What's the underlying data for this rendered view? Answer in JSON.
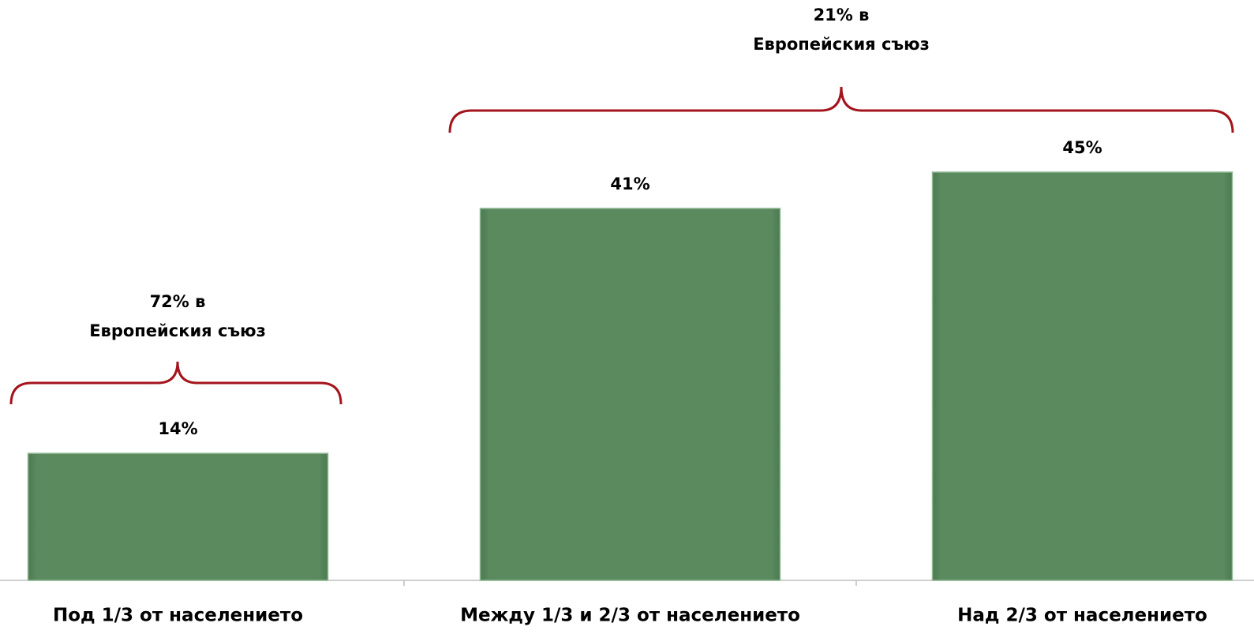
{
  "chart_data": {
    "type": "bar",
    "categories": [
      "Под 1/3 от населението",
      "Между 1/3 и 2/3 от населението",
      "Над 2/3 от населението"
    ],
    "values": [
      14,
      41,
      45
    ],
    "value_labels": [
      "14%",
      "41%",
      "45%"
    ],
    "color": "#5b8a5f",
    "annotations": [
      [
        "72% в",
        "Европейския съюз"
      ],
      [
        "21% в",
        "Европейския съюз"
      ]
    ]
  }
}
